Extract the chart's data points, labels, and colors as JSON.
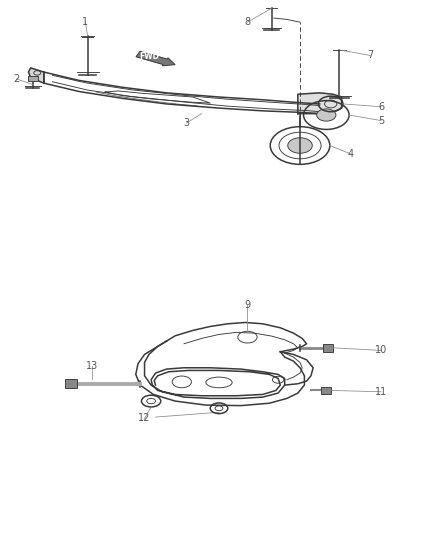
{
  "background_color": "#ffffff",
  "line_color": "#3a3a3a",
  "label_color": "#555555",
  "leader_color": "#888888",
  "fig_width": 4.38,
  "fig_height": 5.33,
  "dpi": 100,
  "lw_main": 1.1,
  "lw_thin": 0.65,
  "lw_leader": 0.55,
  "label_fontsize": 7.0
}
